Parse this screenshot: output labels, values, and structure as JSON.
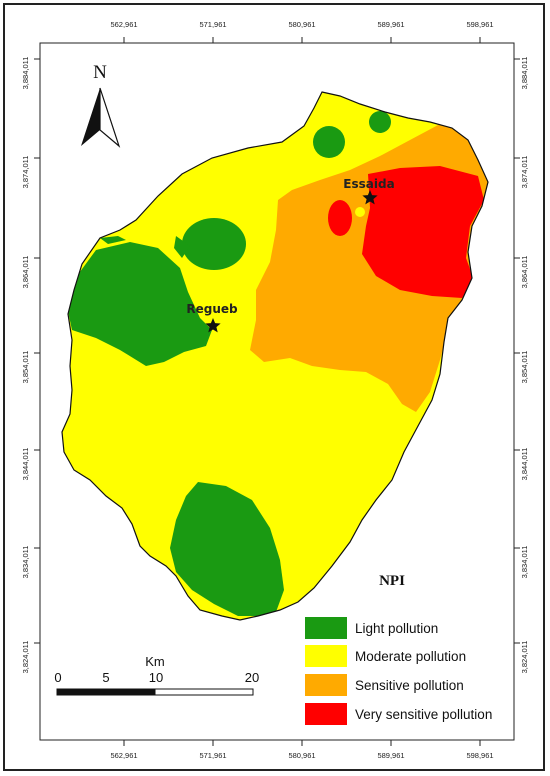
{
  "map": {
    "label": "NPI",
    "north_label": "N",
    "places": [
      {
        "name": "Essaida"
      },
      {
        "name": "Regueb"
      }
    ],
    "x_ticks": [
      "562,961",
      "571,961",
      "580,961",
      "589,961",
      "598,961"
    ],
    "y_ticks": [
      "3,884,011",
      "3,874,011",
      "3,864,011",
      "3,854,011",
      "3,844,011",
      "3,834,011",
      "3,824,011"
    ],
    "scale_bar": {
      "unit": "Km",
      "labels": [
        "0",
        "5",
        "10",
        "20"
      ]
    },
    "legend": [
      {
        "label": "Light pollution",
        "color": "#1a9a12"
      },
      {
        "label": "Moderate pollution",
        "color": "#ffff00"
      },
      {
        "label": "Sensitive pollution",
        "color": "#ffaa00"
      },
      {
        "label": "Very sensitive pollution",
        "color": "#ff0000"
      }
    ]
  }
}
